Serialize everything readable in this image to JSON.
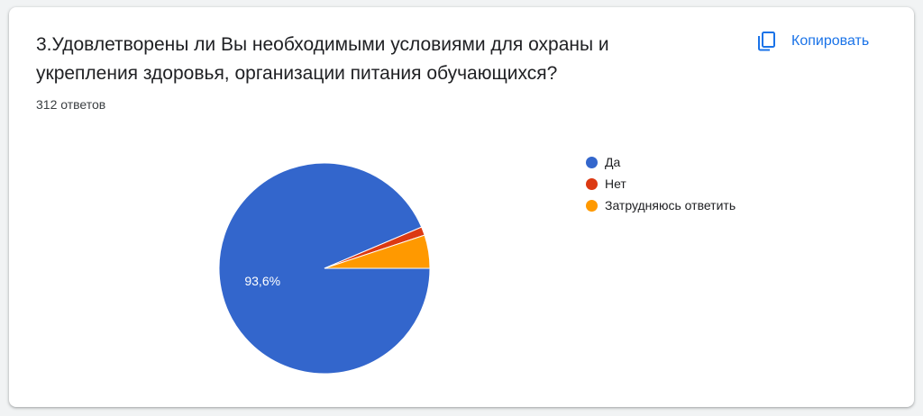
{
  "question": {
    "title": "3.Удовлетворены ли Вы необходимыми условиями для охраны и укрепления здоровья, организации питания обучающихся?",
    "response_count": "312 ответов"
  },
  "copy_button": {
    "label": "Копировать",
    "icon": "copy-icon",
    "color": "#1a73e8"
  },
  "chart_data": {
    "type": "pie",
    "categories": [
      "Да",
      "Нет",
      "Затрудняюсь ответить"
    ],
    "values": [
      93.6,
      1.3,
      5.1
    ],
    "colors": [
      "#3366cc",
      "#dc3912",
      "#ff9900"
    ],
    "data_labels": [
      "93,6%",
      "",
      ""
    ],
    "legend_position": "right"
  }
}
